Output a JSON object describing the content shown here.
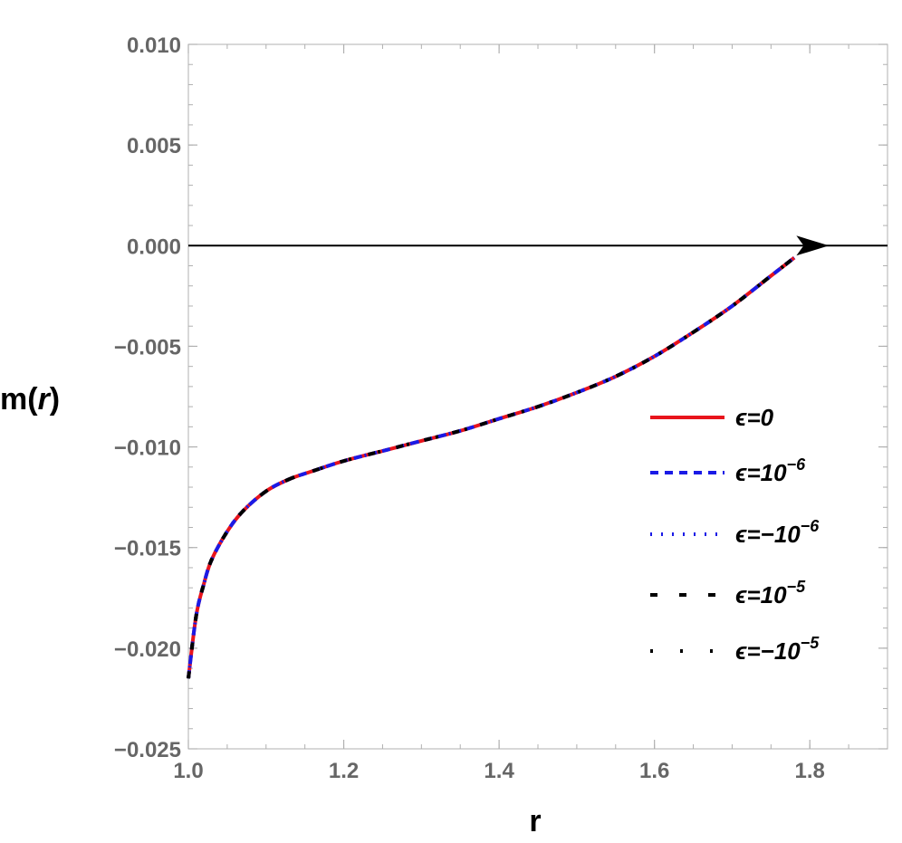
{
  "chart_data": {
    "type": "line",
    "title": "",
    "xlabel": "r",
    "ylabel_main": "m(",
    "ylabel_var": "r",
    "ylabel_close": ")",
    "xlim": [
      1.0,
      1.9
    ],
    "ylim": [
      -0.025,
      0.01
    ],
    "x_ticks": [
      1.0,
      1.2,
      1.4,
      1.6,
      1.8
    ],
    "x_tick_labels": [
      "1.0",
      "1.2",
      "1.4",
      "1.6",
      "1.8"
    ],
    "y_ticks": [
      0.01,
      0.005,
      0.0,
      -0.005,
      -0.01,
      -0.015,
      -0.02,
      -0.025
    ],
    "y_tick_labels": [
      "0.010",
      "0.005",
      "0.000",
      "−0.005",
      "−0.010",
      "−0.015",
      "−0.020",
      "−0.025"
    ],
    "grid": false,
    "legend_position": "center-right",
    "reference_line": {
      "y": 0.0,
      "arrow_at_x": 1.82,
      "color": "#000000"
    },
    "x": [
      1.0,
      1.01,
      1.02,
      1.03,
      1.05,
      1.07,
      1.1,
      1.13,
      1.16,
      1.2,
      1.25,
      1.3,
      1.35,
      1.4,
      1.45,
      1.5,
      1.55,
      1.6,
      1.65,
      1.7,
      1.75,
      1.78
    ],
    "series": [
      {
        "legend_base": "ϵ=0",
        "legend_sup": "",
        "color": "#e8141c",
        "dash": "",
        "width": 4,
        "values": [
          -0.0215,
          -0.0184,
          -0.0168,
          -0.0156,
          -0.0142,
          -0.0132,
          -0.0122,
          -0.0116,
          -0.0112,
          -0.0107,
          -0.0102,
          -0.0097,
          -0.0092,
          -0.0086,
          -0.008,
          -0.0073,
          -0.0065,
          -0.0055,
          -0.0043,
          -0.003,
          -0.0015,
          -0.0006
        ]
      },
      {
        "legend_base": "ϵ=10",
        "legend_sup": "−6",
        "color": "#1a1ae6",
        "dash": "9 7",
        "width": 4,
        "values": [
          -0.0215,
          -0.0184,
          -0.0168,
          -0.0156,
          -0.0142,
          -0.0132,
          -0.0122,
          -0.0116,
          -0.0112,
          -0.0107,
          -0.0102,
          -0.0097,
          -0.0092,
          -0.0086,
          -0.008,
          -0.0073,
          -0.0065,
          -0.0055,
          -0.0043,
          -0.003,
          -0.0015,
          -0.0006
        ]
      },
      {
        "legend_base": "ϵ=−10",
        "legend_sup": "−6",
        "color": "#1a1ae6",
        "dash": "2 10",
        "width": 4,
        "values": [
          -0.0215,
          -0.0184,
          -0.0168,
          -0.0156,
          -0.0142,
          -0.0132,
          -0.0122,
          -0.0116,
          -0.0112,
          -0.0107,
          -0.0102,
          -0.0097,
          -0.0092,
          -0.0086,
          -0.008,
          -0.0073,
          -0.0065,
          -0.0055,
          -0.0043,
          -0.003,
          -0.0015,
          -0.0006
        ]
      },
      {
        "legend_base": "ϵ=10",
        "legend_sup": "−5",
        "color": "#000000",
        "dash": "8 24",
        "width": 4,
        "values": [
          -0.0215,
          -0.0184,
          -0.0168,
          -0.0156,
          -0.0142,
          -0.0132,
          -0.0122,
          -0.0116,
          -0.0112,
          -0.0107,
          -0.0102,
          -0.0097,
          -0.0092,
          -0.0086,
          -0.008,
          -0.0073,
          -0.0065,
          -0.0055,
          -0.0043,
          -0.003,
          -0.0015,
          -0.0006
        ]
      },
      {
        "legend_base": "ϵ=−10",
        "legend_sup": "−5",
        "color": "#000000",
        "dash": "3 30",
        "width": 4,
        "values": [
          -0.0215,
          -0.0184,
          -0.0168,
          -0.0156,
          -0.0142,
          -0.0132,
          -0.0122,
          -0.0116,
          -0.0112,
          -0.0107,
          -0.0102,
          -0.0097,
          -0.0092,
          -0.0086,
          -0.008,
          -0.0073,
          -0.0065,
          -0.0055,
          -0.0043,
          -0.003,
          -0.0015,
          -0.0006
        ]
      }
    ]
  }
}
